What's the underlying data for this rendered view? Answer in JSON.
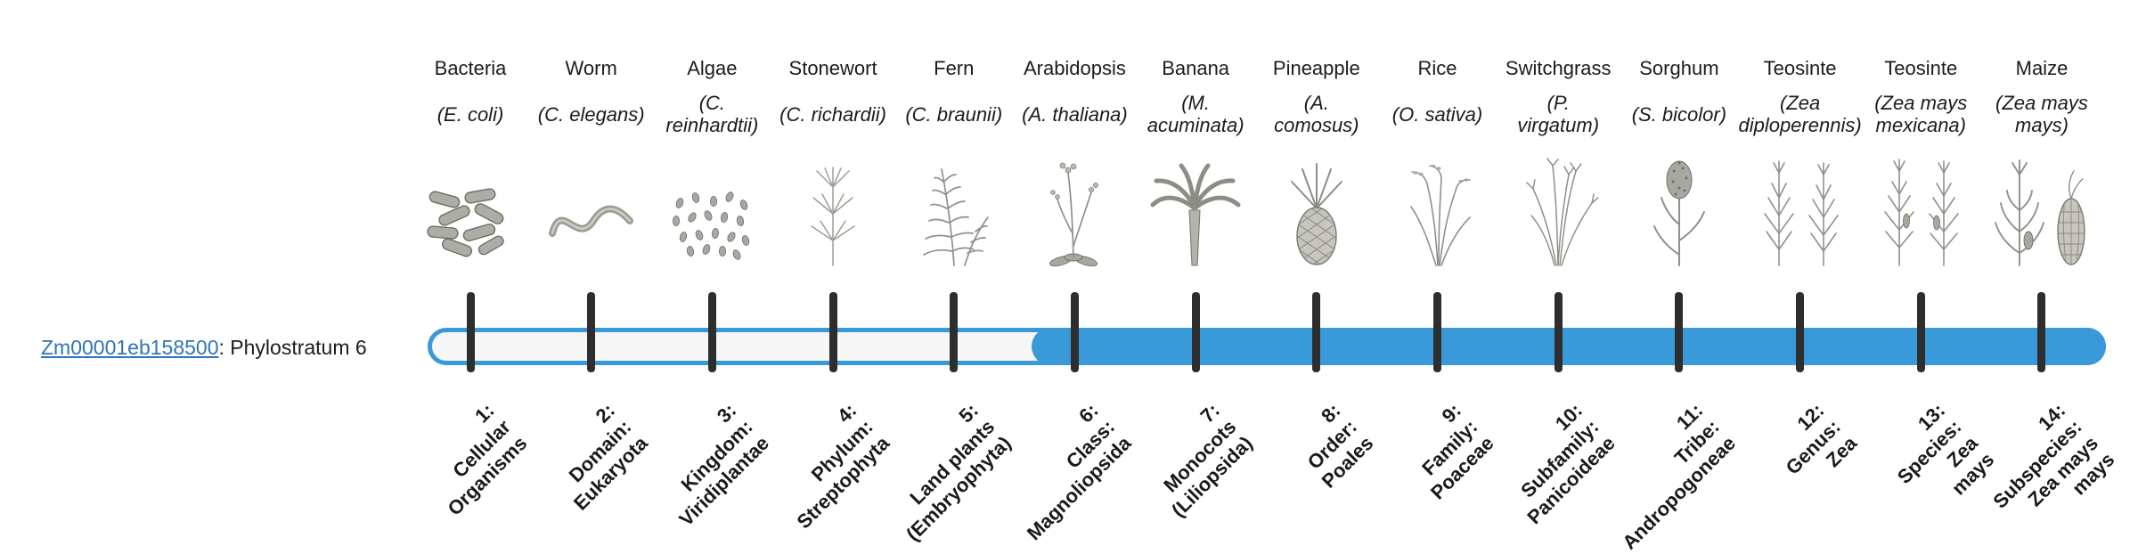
{
  "gene": {
    "id": "Zm00001eb158500",
    "suffix": ": Phylostratum 6",
    "phylostratum": 6
  },
  "timeline": {
    "accent_color": "#3a99d9",
    "track_color": "#f7f7f7",
    "tick_color": "#2e2e2e",
    "fill_start_stratum": 6,
    "strata": [
      {
        "index": 1,
        "common_name": "Bacteria",
        "scientific_name": "(E. coli)",
        "icon": "bacteria-icon",
        "stage_label": "1:\nCellular\nOrganisms"
      },
      {
        "index": 2,
        "common_name": "Worm",
        "scientific_name": "(C. elegans)",
        "icon": "worm-icon",
        "stage_label": "2:\nDomain:\nEukaryota"
      },
      {
        "index": 3,
        "common_name": "Algae",
        "scientific_name": "(C.\nreinhardtii)",
        "icon": "algae-icon",
        "stage_label": "3:\nKingdom:\nViridiplantae"
      },
      {
        "index": 4,
        "common_name": "Stonewort",
        "scientific_name": "(C. richardii)",
        "icon": "stonewort-icon",
        "stage_label": "4:\nPhylum:\nStreptophyta"
      },
      {
        "index": 5,
        "common_name": "Fern",
        "scientific_name": "(C. braunii)",
        "icon": "fern-icon",
        "stage_label": "5:\nLand plants\n(Embryophyta)"
      },
      {
        "index": 6,
        "common_name": "Arabidopsis",
        "scientific_name": "(A. thaliana)",
        "icon": "arabidopsis-icon",
        "stage_label": "6:\nClass:\nMagnoliopsida"
      },
      {
        "index": 7,
        "common_name": "Banana",
        "scientific_name": "(M.\nacuminata)",
        "icon": "banana-icon",
        "stage_label": "7:\nMonocots\n(Liliopsida)"
      },
      {
        "index": 8,
        "common_name": "Pineapple",
        "scientific_name": "(A.\ncomosus)",
        "icon": "pineapple-icon",
        "stage_label": "8:\nOrder:\nPoales"
      },
      {
        "index": 9,
        "common_name": "Rice",
        "scientific_name": "(O. sativa)",
        "icon": "rice-icon",
        "stage_label": "9:\nFamily:\nPoaceae"
      },
      {
        "index": 10,
        "common_name": "Switchgrass",
        "scientific_name": "(P.\nvirgatum)",
        "icon": "switchgrass-icon",
        "stage_label": "10:\nSubfamily:\nPanicoideae"
      },
      {
        "index": 11,
        "common_name": "Sorghum",
        "scientific_name": "(S. bicolor)",
        "icon": "sorghum-icon",
        "stage_label": "11:\nTribe:\nAndropogoneae"
      },
      {
        "index": 12,
        "common_name": "Teosinte",
        "scientific_name": "(Zea\ndiploperennis)",
        "icon": "teosinte-diplo-icon",
        "stage_label": "12:\nGenus:\nZea"
      },
      {
        "index": 13,
        "common_name": "Teosinte",
        "scientific_name": "(Zea mays\nmexicana)",
        "icon": "teosinte-mex-icon",
        "stage_label": "13:\nSpecies:\nZea\nmays"
      },
      {
        "index": 14,
        "common_name": "Maize",
        "scientific_name": "(Zea mays\nmays)",
        "icon": "maize-icon",
        "stage_label": "14:\nSubspecies:\nZea mays\nmays"
      }
    ]
  }
}
